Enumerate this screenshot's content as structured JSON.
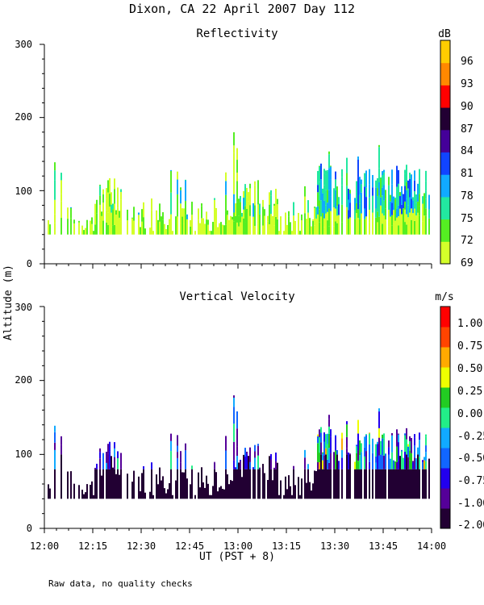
{
  "page": {
    "title": "Dixon, CA 22 April 2007  Day 112",
    "y_axis_label": "Altitude (m)",
    "x_axis_label": "UT  (PST + 8)",
    "footnote": "Raw data, no quality checks"
  },
  "chart_data": [
    {
      "type": "heatmap",
      "title": "Reflectivity",
      "xlabel": "UT  (PST + 8)",
      "ylabel": "Altitude (m)",
      "x_range_hours": [
        12.0,
        14.0
      ],
      "xlim_labels": [
        "12:00",
        "14:00"
      ],
      "ylim": [
        0,
        300
      ],
      "yticks": [
        "0",
        "100",
        "200",
        "300"
      ],
      "colorbar": {
        "unit": "dB",
        "labels": [
          "69",
          "72",
          "75",
          "78",
          "81",
          "84",
          "87",
          "90",
          "93",
          "96"
        ],
        "colors": [
          "#d4ff2a",
          "#55ee22",
          "#22e8a0",
          "#11aaff",
          "#1144ff",
          "#440099",
          "#220033",
          "#ff0000",
          "#ff8800",
          "#ffcc00"
        ]
      },
      "data_summary": "Echoes between ~40 and ~180 m altitude; tops mostly 60-120 m before 13:00, growing to 120-180 m after 13:25. Reflectivity mainly 69-78 dB, higher values late in the period."
    },
    {
      "type": "heatmap",
      "title": "Vertical Velocity",
      "xlabel": "UT  (PST + 8)",
      "ylabel": "Altitude (m)",
      "x_range_hours": [
        12.0,
        14.0
      ],
      "xlim_labels": [
        "12:00",
        "14:00"
      ],
      "ylim": [
        0,
        300
      ],
      "yticks": [
        "0",
        "100",
        "200",
        "300"
      ],
      "colorbar": {
        "unit": "m/s",
        "labels": [
          "-2.00",
          "-1.00",
          "-0.75",
          "-0.50",
          "-0.25",
          "0.00",
          "0.25",
          "0.50",
          "0.75",
          "1.00"
        ],
        "colors": [
          "#220033",
          "#550099",
          "#2200ee",
          "#1166ff",
          "#11aaff",
          "#22ee88",
          "#22cc22",
          "#eeff00",
          "#ffaa00",
          "#ff4400",
          "#ff0000"
        ]
      },
      "data_summary": "Mostly strong downward velocities (-2.00 to -1.00 m/s) at low levels 40-80 m; mixed values from -0.75 to +0.50 m/s in the upper parts of echoes, especially after 13:25."
    }
  ],
  "x_ticks": {
    "labels": [
      "12:00",
      "12:15",
      "12:30",
      "12:45",
      "13:00",
      "13:15",
      "13:30",
      "13:45",
      "14:00"
    ]
  }
}
